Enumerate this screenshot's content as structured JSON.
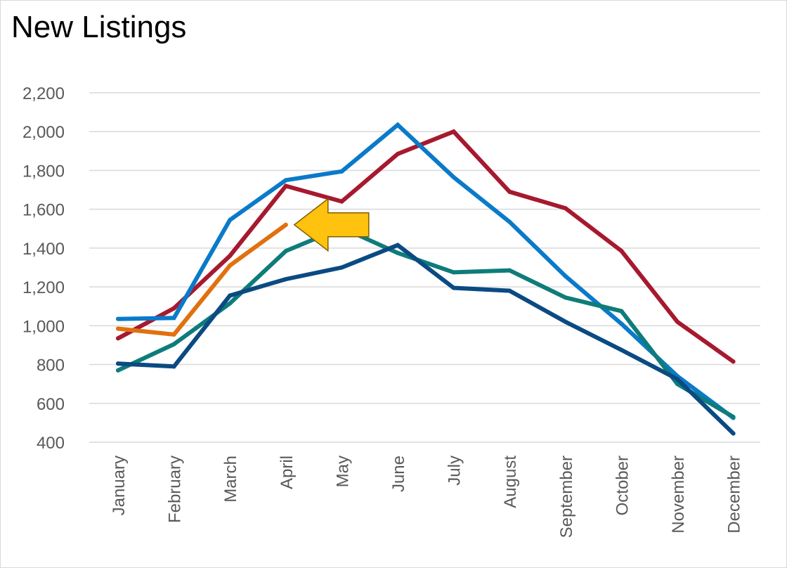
{
  "chart_data": {
    "type": "line",
    "title": "New Listings",
    "xlabel": "",
    "ylabel": "",
    "ylim": [
      400,
      2200
    ],
    "yticks": [
      400,
      600,
      800,
      1000,
      1200,
      1400,
      1600,
      1800,
      2000,
      2200
    ],
    "ytick_labels": [
      "400",
      "600",
      "800",
      "1,000",
      "1,200",
      "1,400",
      "1,600",
      "1,800",
      "2,000",
      "2,200"
    ],
    "grid": true,
    "legend": "none",
    "categories": [
      "January",
      "February",
      "March",
      "April",
      "May",
      "June",
      "July",
      "August",
      "September",
      "October",
      "November",
      "December"
    ],
    "series": [
      {
        "color": "#A6192E",
        "values": [
          935,
          1090,
          1360,
          1720,
          1640,
          1885,
          2000,
          1690,
          1605,
          1385,
          1020,
          815
        ]
      },
      {
        "color": "#0A7AC9",
        "values": [
          1035,
          1040,
          1545,
          1750,
          1795,
          2035,
          1765,
          1535,
          1255,
          1010,
          740,
          525
        ]
      },
      {
        "color": "#0E7C7B",
        "values": [
          770,
          905,
          1115,
          1385,
          1505,
          1375,
          1275,
          1285,
          1145,
          1075,
          700,
          530
        ]
      },
      {
        "color": "#0B4A82",
        "values": [
          805,
          790,
          1155,
          1240,
          1300,
          1415,
          1195,
          1180,
          1020,
          875,
          725,
          445
        ]
      },
      {
        "color": "#E1700E",
        "values": [
          985,
          955,
          1310,
          1520,
          null,
          null,
          null,
          null,
          null,
          null,
          null,
          null
        ]
      }
    ],
    "annotations": [
      {
        "type": "arrow",
        "shape": "left-pointing block arrow",
        "color": "#FFC20E",
        "outline": "#7f6000",
        "points_at_category": "April",
        "points_at_value": 1520
      }
    ]
  }
}
